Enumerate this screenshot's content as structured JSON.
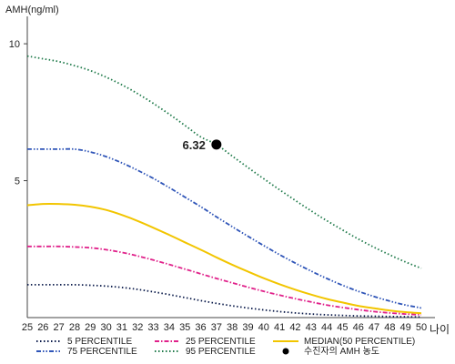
{
  "chart_data": {
    "type": "line",
    "ylabel": "AMH(ng/ml)",
    "xlabel": "나이",
    "x": [
      25,
      26,
      27,
      28,
      29,
      30,
      31,
      32,
      33,
      34,
      35,
      36,
      37,
      38,
      39,
      40,
      41,
      42,
      43,
      44,
      45,
      46,
      47,
      48,
      49,
      50
    ],
    "xlim": [
      25,
      50
    ],
    "ylim": [
      0,
      11
    ],
    "yticks": [
      5,
      10
    ],
    "grid": false,
    "legend_position": "bottom",
    "series": [
      {
        "name": "5 PERCENTILE",
        "color": "#0a1a4a",
        "dash": "dot",
        "values": [
          1.2,
          1.2,
          1.2,
          1.2,
          1.18,
          1.15,
          1.1,
          1.03,
          0.94,
          0.84,
          0.73,
          0.62,
          0.52,
          0.43,
          0.35,
          0.28,
          0.22,
          0.17,
          0.13,
          0.1,
          0.08,
          0.06,
          0.05,
          0.04,
          0.03,
          0.02
        ]
      },
      {
        "name": "25 PERCENTILE",
        "color": "#e0218a",
        "dash": "dashdot",
        "values": [
          2.6,
          2.6,
          2.6,
          2.58,
          2.55,
          2.48,
          2.38,
          2.25,
          2.1,
          1.94,
          1.77,
          1.6,
          1.43,
          1.27,
          1.11,
          0.96,
          0.82,
          0.69,
          0.57,
          0.46,
          0.37,
          0.29,
          0.22,
          0.17,
          0.13,
          0.1
        ]
      },
      {
        "name": "MEDIAN(50 PERCENTILE)",
        "color": "#f2c500",
        "dash": "solid",
        "values": [
          4.1,
          4.15,
          4.15,
          4.12,
          4.05,
          3.93,
          3.75,
          3.53,
          3.28,
          3.02,
          2.75,
          2.48,
          2.2,
          1.93,
          1.68,
          1.44,
          1.22,
          1.02,
          0.84,
          0.68,
          0.55,
          0.43,
          0.34,
          0.26,
          0.2,
          0.16
        ]
      },
      {
        "name": "75 PERCENTILE",
        "color": "#2f55b8",
        "dash": "dashdotdot",
        "values": [
          6.15,
          6.15,
          6.15,
          6.15,
          6.05,
          5.88,
          5.65,
          5.38,
          5.08,
          4.75,
          4.4,
          4.05,
          3.68,
          3.32,
          2.97,
          2.63,
          2.3,
          1.99,
          1.7,
          1.43,
          1.18,
          0.96,
          0.77,
          0.6,
          0.46,
          0.35
        ]
      },
      {
        "name": "95 PERCENTILE",
        "color": "#1f7a4a",
        "dash": "dot",
        "values": [
          9.55,
          9.45,
          9.35,
          9.2,
          9.02,
          8.78,
          8.5,
          8.18,
          7.82,
          7.43,
          7.02,
          6.6,
          6.32,
          5.9,
          5.48,
          5.07,
          4.67,
          4.28,
          3.9,
          3.54,
          3.2,
          2.87,
          2.57,
          2.29,
          2.03,
          1.8
        ]
      }
    ],
    "annotation": {
      "name": "수진자의 AMH 농도",
      "x": 37,
      "y": 6.32,
      "label": "6.32",
      "color": "#000000"
    },
    "legend_order": [
      "5 PERCENTILE",
      "25 PERCENTILE",
      "MEDIAN(50 PERCENTILE)",
      "75 PERCENTILE",
      "95 PERCENTILE",
      "수진자의 AMH 농도"
    ]
  }
}
